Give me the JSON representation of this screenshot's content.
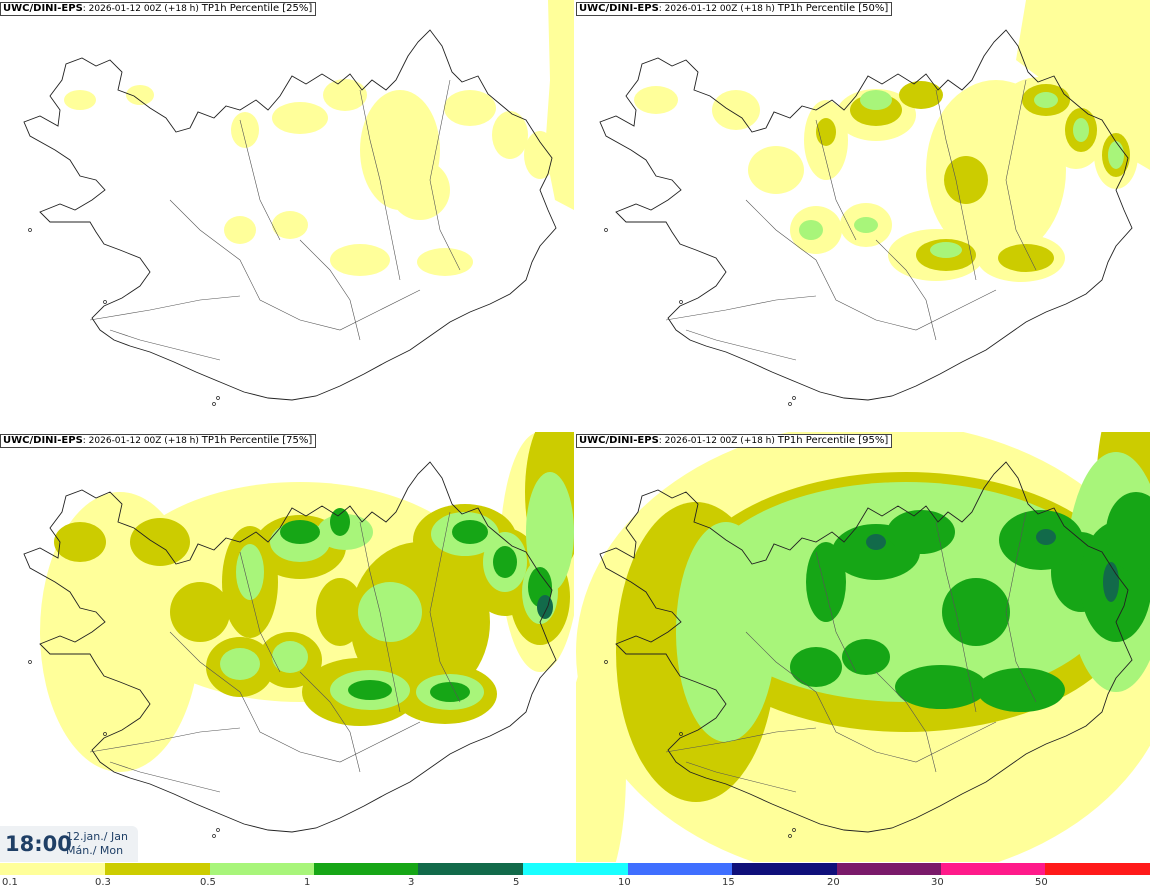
{
  "panels": [
    {
      "model": "UWC/DINI-EPS",
      "run": ": 2026-01-12 00Z (+18 h)",
      "field": "TP1h Percentile [25%]",
      "level": 0
    },
    {
      "model": "UWC/DINI-EPS",
      "run": ": 2026-01-12 00Z (+18 h)",
      "field": "TP1h Percentile [50%]",
      "level": 1
    },
    {
      "model": "UWC/DINI-EPS",
      "run": ": 2026-01-12 00Z (+18 h)",
      "field": "TP1h Percentile [75%]",
      "level": 2
    },
    {
      "model": "UWC/DINI-EPS",
      "run": ": 2026-01-12 00Z (+18 h)",
      "field": "TP1h Percentile [95%]",
      "level": 3
    }
  ],
  "valid_time": {
    "time": "18:00",
    "date_line1": "12.jan./ Jan",
    "date_line2": "Mán./ Mon"
  },
  "color_scale": {
    "labels": [
      "0.1",
      "0.3",
      "0.5",
      "1",
      "3",
      "5",
      "10",
      "15",
      "20",
      "30",
      "50"
    ],
    "colors": [
      "#ffff9a",
      "#cccc00",
      "#a8f57a",
      "#16a616",
      "#126a4a",
      "#19ffff",
      "#3f6fff",
      "#0f0f7a",
      "#7a1a6a",
      "#ff1a8a",
      "#ff1a1a"
    ]
  },
  "colors": {
    "c1": "#ffff9a",
    "c2": "#cccc00",
    "c3": "#a8f57a",
    "c4": "#16a616",
    "c5": "#126a4a"
  }
}
